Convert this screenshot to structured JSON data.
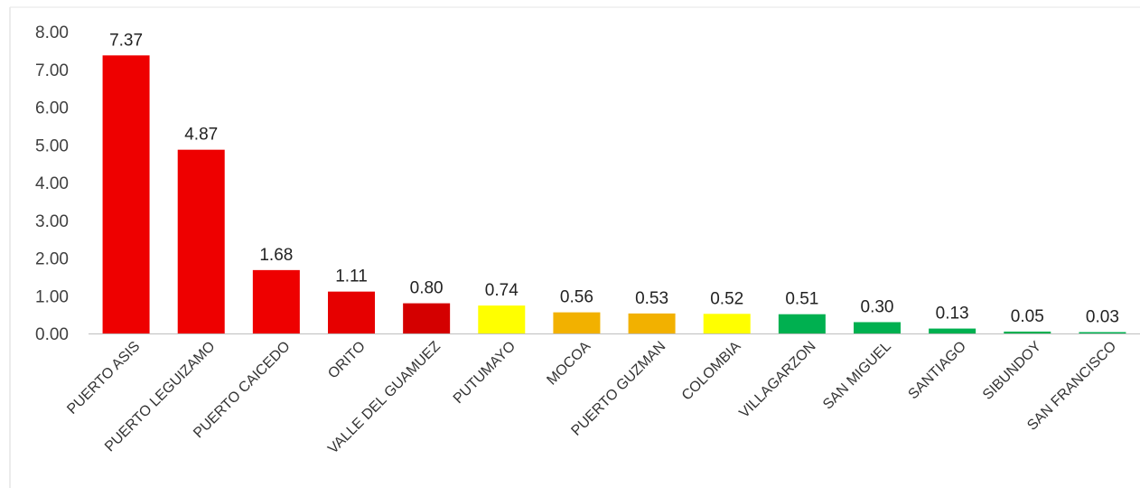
{
  "chart_data": {
    "type": "bar",
    "title": "",
    "xlabel": "",
    "ylabel": "",
    "ylim": [
      0,
      8
    ],
    "yticks": [
      "0.00",
      "1.00",
      "2.00",
      "3.00",
      "4.00",
      "5.00",
      "6.00",
      "7.00",
      "8.00"
    ],
    "grid": false,
    "legend": "none",
    "categories": [
      "PUERTO ASIS",
      "PUERTO LEGUIZAMO",
      "PUERTO CAICEDO",
      "ORITO",
      "VALLE DEL GUAMUEZ",
      "PUTUMAYO",
      "MOCOA",
      "PUERTO GUZMAN",
      "COLOMBIA",
      "VILLAGARZON",
      "SAN MIGUEL",
      "SANTIAGO",
      "SIBUNDOY",
      "SAN FRANCISCO"
    ],
    "values": [
      7.37,
      4.87,
      1.68,
      1.11,
      0.8,
      0.74,
      0.56,
      0.53,
      0.52,
      0.51,
      0.3,
      0.13,
      0.05,
      0.03
    ],
    "value_labels": [
      "7.37",
      "4.87",
      "1.68",
      "1.11",
      "0.80",
      "0.74",
      "0.56",
      "0.53",
      "0.52",
      "0.51",
      "0.30",
      "0.13",
      "0.05",
      "0.03"
    ],
    "bar_colors": [
      "#ee0000",
      "#ee0000",
      "#ee0000",
      "#e60000",
      "#d40000",
      "#ffff00",
      "#f2b100",
      "#f2b100",
      "#ffff00",
      "#00b050",
      "#00b050",
      "#00b050",
      "#00b050",
      "#00b050"
    ]
  }
}
